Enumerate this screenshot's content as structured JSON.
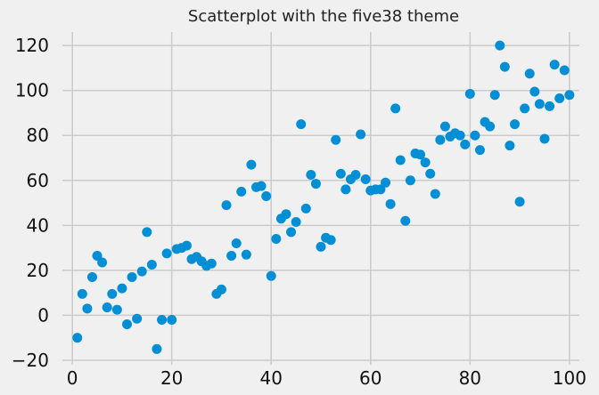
{
  "chart_data": {
    "type": "scatter",
    "title": "Scatterplot with the five38 theme",
    "xlabel": "",
    "ylabel": "",
    "xlim": [
      -2,
      102
    ],
    "ylim": [
      -22,
      126
    ],
    "x_ticks": [
      0,
      20,
      40,
      60,
      80,
      100
    ],
    "y_ticks": [
      -20,
      0,
      20,
      40,
      60,
      80,
      100,
      120
    ],
    "grid": true,
    "point_color": "#008fd5",
    "background_color": "#f0f0f0",
    "grid_color": "#cbcbcb",
    "points": [
      {
        "x": 1,
        "y": -10
      },
      {
        "x": 2,
        "y": 9.5
      },
      {
        "x": 3,
        "y": 3
      },
      {
        "x": 4,
        "y": 17
      },
      {
        "x": 5,
        "y": 26.5
      },
      {
        "x": 6,
        "y": 23.5
      },
      {
        "x": 7,
        "y": 3.5
      },
      {
        "x": 8,
        "y": 9.5
      },
      {
        "x": 9,
        "y": 2.5
      },
      {
        "x": 10,
        "y": 12
      },
      {
        "x": 11,
        "y": -4
      },
      {
        "x": 12,
        "y": 17
      },
      {
        "x": 13,
        "y": -1.5
      },
      {
        "x": 14,
        "y": 19.5
      },
      {
        "x": 15,
        "y": 37
      },
      {
        "x": 16,
        "y": 22.5
      },
      {
        "x": 17,
        "y": -15
      },
      {
        "x": 18,
        "y": -2
      },
      {
        "x": 19,
        "y": 27.5
      },
      {
        "x": 20,
        "y": -2
      },
      {
        "x": 21,
        "y": 29.5
      },
      {
        "x": 22,
        "y": 30
      },
      {
        "x": 23,
        "y": 31
      },
      {
        "x": 24,
        "y": 25
      },
      {
        "x": 25,
        "y": 26
      },
      {
        "x": 26,
        "y": 24
      },
      {
        "x": 27,
        "y": 22
      },
      {
        "x": 28,
        "y": 23
      },
      {
        "x": 29,
        "y": 9.5
      },
      {
        "x": 30,
        "y": 11.5
      },
      {
        "x": 31,
        "y": 49
      },
      {
        "x": 32,
        "y": 26.5
      },
      {
        "x": 33,
        "y": 32
      },
      {
        "x": 34,
        "y": 55
      },
      {
        "x": 35,
        "y": 27
      },
      {
        "x": 36,
        "y": 67
      },
      {
        "x": 37,
        "y": 57
      },
      {
        "x": 38,
        "y": 57.5
      },
      {
        "x": 39,
        "y": 53
      },
      {
        "x": 40,
        "y": 17.5
      },
      {
        "x": 41,
        "y": 34
      },
      {
        "x": 42,
        "y": 43
      },
      {
        "x": 43,
        "y": 45
      },
      {
        "x": 44,
        "y": 37
      },
      {
        "x": 45,
        "y": 41.5
      },
      {
        "x": 46,
        "y": 85
      },
      {
        "x": 47,
        "y": 47.5
      },
      {
        "x": 48,
        "y": 62.5
      },
      {
        "x": 49,
        "y": 58.5
      },
      {
        "x": 50,
        "y": 30.5
      },
      {
        "x": 51,
        "y": 34.5
      },
      {
        "x": 52,
        "y": 33.5
      },
      {
        "x": 53,
        "y": 78
      },
      {
        "x": 54,
        "y": 63
      },
      {
        "x": 55,
        "y": 56
      },
      {
        "x": 56,
        "y": 60.5
      },
      {
        "x": 57,
        "y": 62.5
      },
      {
        "x": 58,
        "y": 80.5
      },
      {
        "x": 59,
        "y": 60.5
      },
      {
        "x": 60,
        "y": 55.5
      },
      {
        "x": 61,
        "y": 56
      },
      {
        "x": 62,
        "y": 56
      },
      {
        "x": 63,
        "y": 59
      },
      {
        "x": 64,
        "y": 49.5
      },
      {
        "x": 65,
        "y": 92
      },
      {
        "x": 66,
        "y": 69
      },
      {
        "x": 67,
        "y": 42
      },
      {
        "x": 68,
        "y": 60
      },
      {
        "x": 69,
        "y": 72
      },
      {
        "x": 70,
        "y": 71.5
      },
      {
        "x": 71,
        "y": 68
      },
      {
        "x": 72,
        "y": 63
      },
      {
        "x": 73,
        "y": 54
      },
      {
        "x": 74,
        "y": 78
      },
      {
        "x": 75,
        "y": 84
      },
      {
        "x": 76,
        "y": 79.5
      },
      {
        "x": 77,
        "y": 81
      },
      {
        "x": 78,
        "y": 80
      },
      {
        "x": 79,
        "y": 76
      },
      {
        "x": 80,
        "y": 98.5
      },
      {
        "x": 81,
        "y": 80
      },
      {
        "x": 82,
        "y": 73.5
      },
      {
        "x": 83,
        "y": 86
      },
      {
        "x": 84,
        "y": 84
      },
      {
        "x": 85,
        "y": 98
      },
      {
        "x": 86,
        "y": 120
      },
      {
        "x": 87,
        "y": 110.5
      },
      {
        "x": 88,
        "y": 75.5
      },
      {
        "x": 89,
        "y": 85
      },
      {
        "x": 90,
        "y": 50.5
      },
      {
        "x": 91,
        "y": 92
      },
      {
        "x": 92,
        "y": 107.5
      },
      {
        "x": 93,
        "y": 99.5
      },
      {
        "x": 94,
        "y": 94
      },
      {
        "x": 95,
        "y": 78.5
      },
      {
        "x": 96,
        "y": 93
      },
      {
        "x": 97,
        "y": 111.5
      },
      {
        "x": 98,
        "y": 96.5
      },
      {
        "x": 99,
        "y": 109
      },
      {
        "x": 100,
        "y": 98
      }
    ]
  }
}
